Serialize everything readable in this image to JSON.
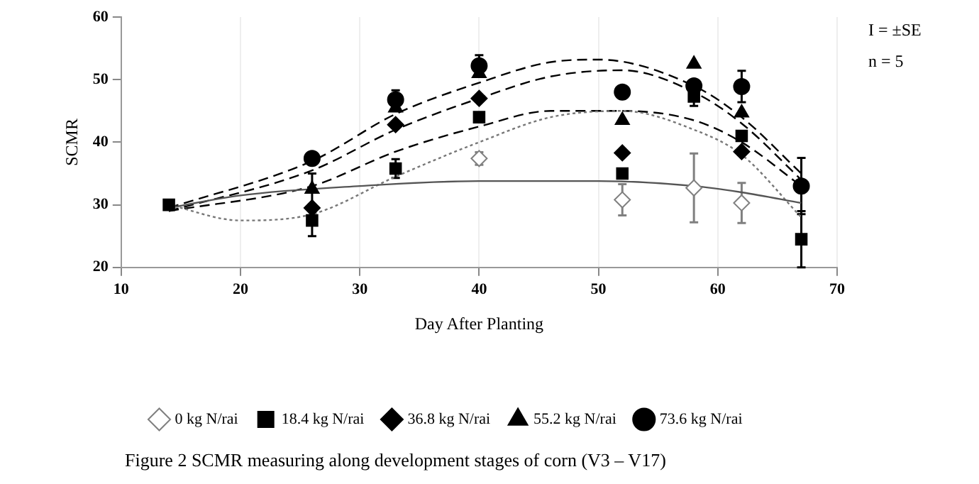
{
  "chart_data": {
    "type": "scatter",
    "xlabel": "Day After Planting",
    "ylabel": "SCMR",
    "x": [
      14,
      26,
      33,
      40,
      52,
      58,
      62,
      67
    ],
    "xlim": [
      10,
      70
    ],
    "xticks": [
      10,
      20,
      30,
      40,
      50,
      60,
      70
    ],
    "ylim": [
      20,
      60
    ],
    "yticks": [
      20,
      30,
      40,
      50,
      60
    ],
    "grid": "x",
    "legend": "bottom",
    "series": [
      {
        "name": "0 kg N/rai",
        "color": "#808080",
        "marker": "diamond",
        "values": [
          null,
          null,
          null,
          37.4,
          30.8,
          32.7,
          30.3,
          null
        ],
        "errors": [
          null,
          null,
          null,
          1,
          2.5,
          5.5,
          3.2,
          null
        ]
      },
      {
        "name": "18.4 kg N/rai",
        "color": "#000000",
        "marker": "square",
        "values": [
          30,
          27.5,
          35.8,
          44,
          35,
          47.3,
          41,
          24.5
        ],
        "errors": [
          null,
          2.5,
          1.5,
          null,
          null,
          1.5,
          null,
          4.5
        ]
      },
      {
        "name": "36.8 kg N/rai",
        "color": "#000000",
        "marker": "diamond",
        "values": [
          null,
          29.5,
          42.8,
          47,
          38.3,
          null,
          38.5,
          null
        ],
        "errors": [
          null,
          null,
          null,
          null,
          null,
          null,
          null,
          null
        ]
      },
      {
        "name": "55.2 kg N/rai",
        "color": "#000000",
        "marker": "triangle",
        "values": [
          null,
          32.5,
          45.5,
          51,
          43.5,
          52.5,
          44.7,
          null
        ],
        "errors": [
          null,
          2.5,
          null,
          null,
          null,
          null,
          null,
          null
        ]
      },
      {
        "name": "73.6 kg N/rai",
        "color": "#000000",
        "marker": "circle",
        "values": [
          null,
          37.4,
          46.8,
          52.2,
          48,
          49,
          48.9,
          33
        ],
        "errors": [
          null,
          null,
          1.5,
          1.7,
          null,
          null,
          2.5,
          4.5
        ]
      },
      {
        "type": "line",
        "color": "#555555",
        "marker": "none",
        "line_style": "solid",
        "x": [
          14,
          20,
          30,
          40,
          50,
          58,
          62,
          67
        ],
        "values": [
          29.5,
          31.5,
          33,
          33.8,
          33.8,
          33,
          32,
          30.3
        ]
      },
      {
        "type": "line",
        "color": "#777777",
        "marker": "none",
        "line_style": "dotted",
        "x": [
          14,
          20,
          26,
          33,
          40,
          46,
          52,
          58,
          62,
          67
        ],
        "values": [
          30,
          27.5,
          28.5,
          34.5,
          40,
          44,
          45,
          42,
          38,
          28
        ]
      },
      {
        "type": "line",
        "color": "#000000",
        "marker": "none",
        "line_style": "dashed",
        "x": [
          14,
          26,
          33,
          40,
          46,
          52,
          58,
          62,
          67
        ],
        "values": [
          29,
          33,
          38.5,
          42.5,
          45,
          45,
          43.5,
          40,
          33
        ]
      },
      {
        "type": "line",
        "color": "#000000",
        "marker": "none",
        "line_style": "dashed",
        "x": [
          14,
          26,
          33,
          40,
          46,
          52,
          58,
          62,
          67
        ],
        "values": [
          29,
          35.5,
          42,
          47,
          50.5,
          51.5,
          48,
          43,
          34
        ]
      },
      {
        "type": "line",
        "color": "#000000",
        "marker": "none",
        "line_style": "dashed",
        "x": [
          14,
          26,
          33,
          40,
          46,
          50,
          58,
          62,
          67
        ],
        "values": [
          29.5,
          37,
          44.5,
          49.5,
          52.8,
          53.2,
          49,
          44,
          35
        ]
      }
    ],
    "annotations": [
      "I = ±SE",
      "n = 5",
      "Figure 2 SCMR measuring along development stages of corn (V3 – V17)"
    ]
  }
}
